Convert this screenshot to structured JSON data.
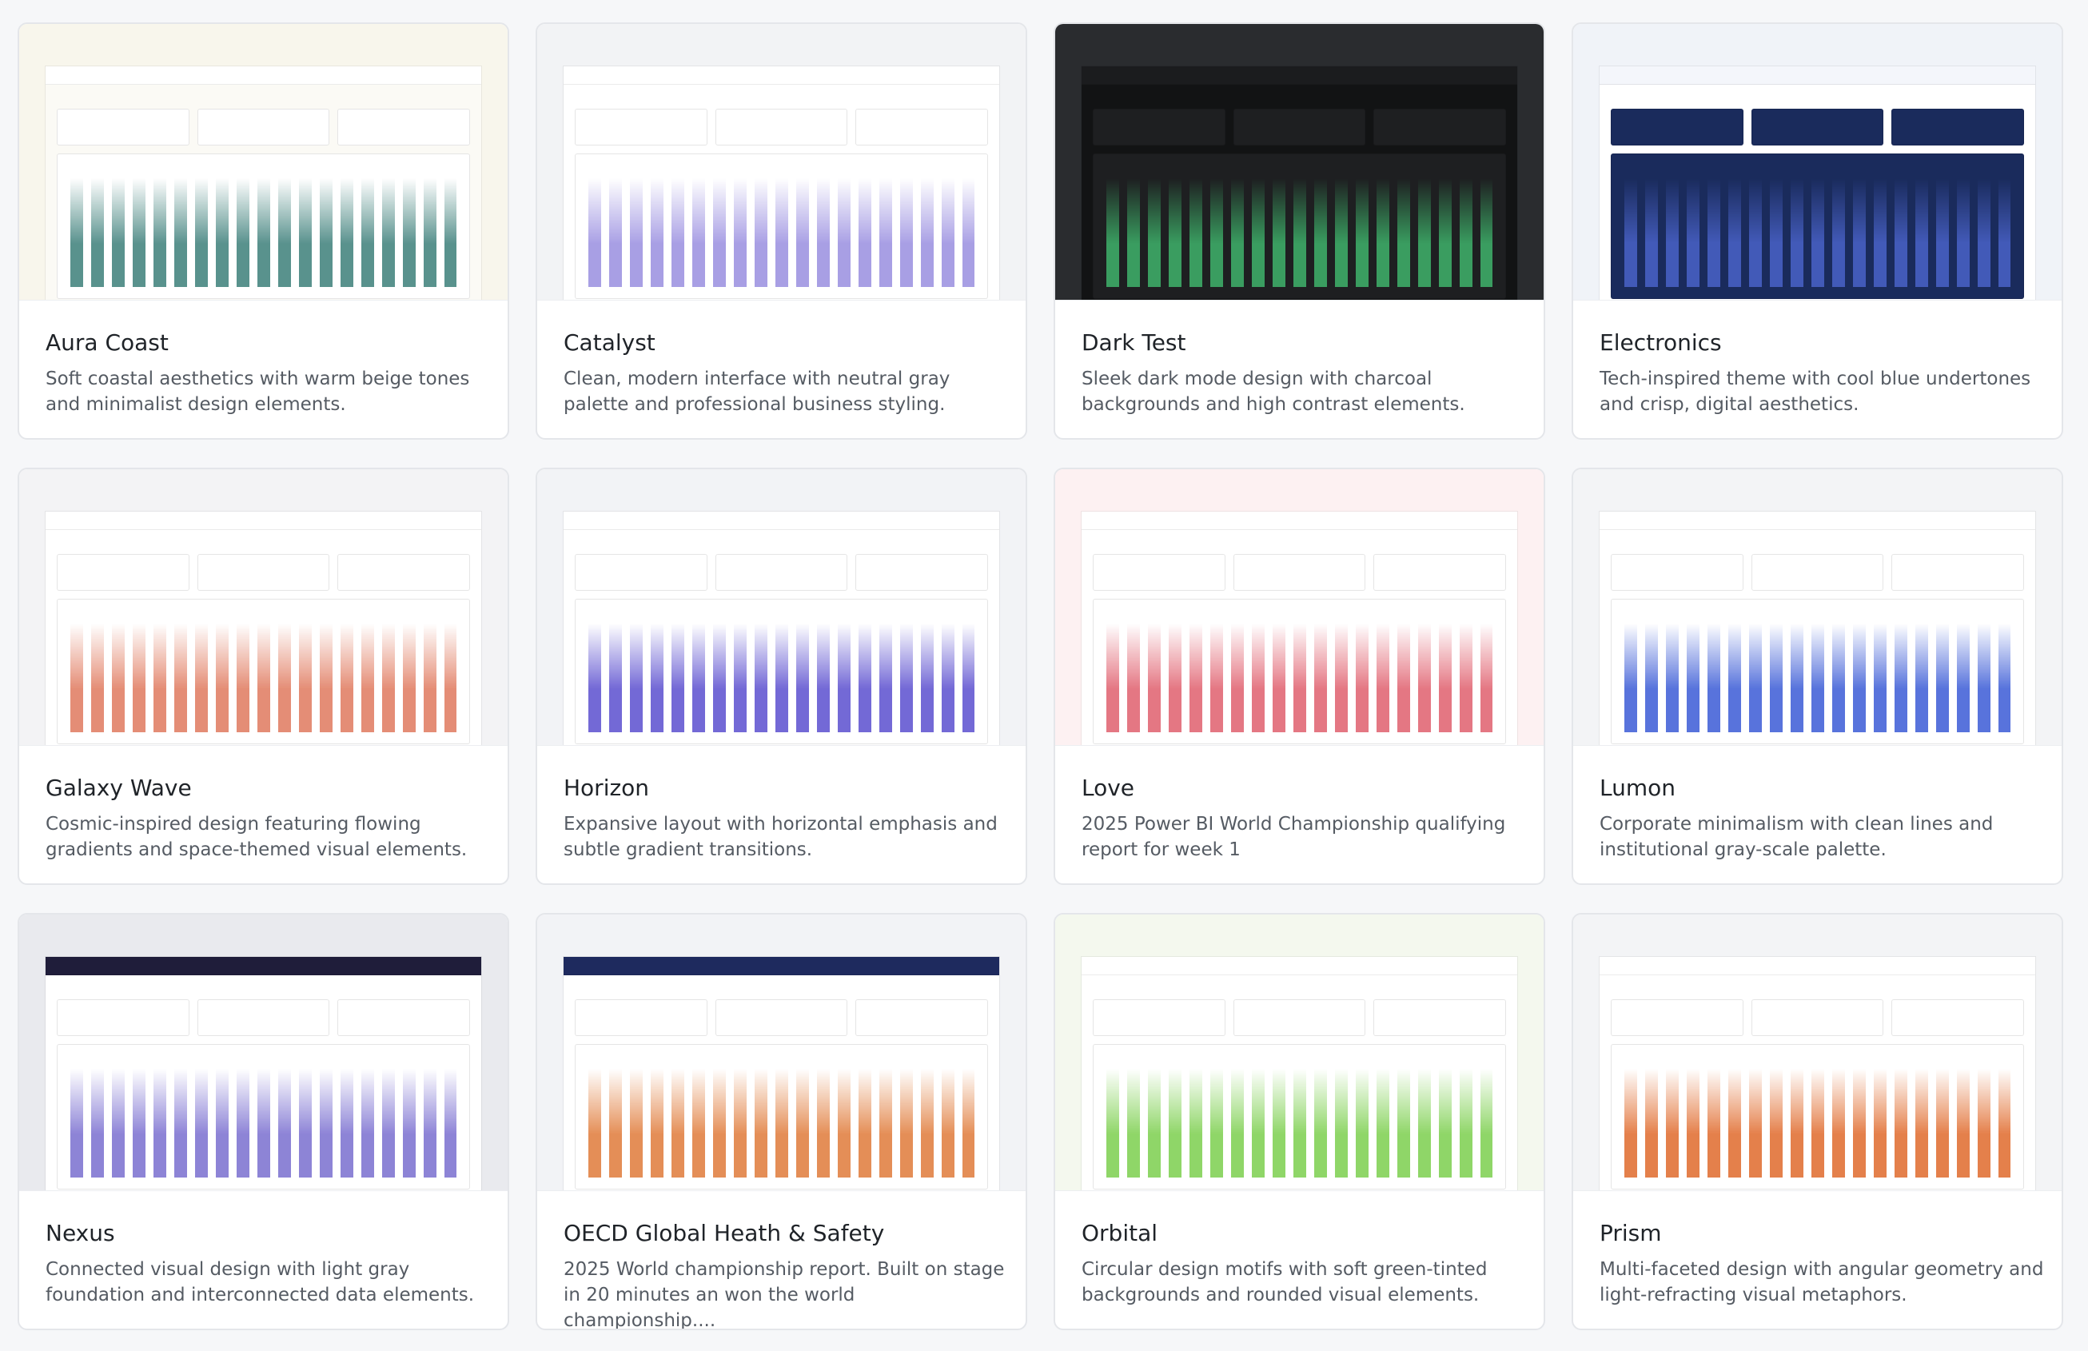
{
  "cards": [
    {
      "title": "Aura Coast",
      "description": "Soft coastal aesthetics with warm beige tones and minimalist design elements."
    },
    {
      "title": "Catalyst",
      "description": "Clean, modern interface with neutral gray palette and professional business styling."
    },
    {
      "title": "Dark Test",
      "description": "Sleek dark mode design with charcoal backgrounds and high contrast elements."
    },
    {
      "title": "Electronics",
      "description": "Tech-inspired theme with cool blue undertones and crisp, digital aesthetics."
    },
    {
      "title": "Galaxy Wave",
      "description": "Cosmic-inspired design featuring flowing gradients and space-themed visual elements."
    },
    {
      "title": "Horizon",
      "description": "Expansive layout with horizontal emphasis and subtle gradient transitions."
    },
    {
      "title": "Love",
      "description": "2025 Power BI World Championship qualifying report for week 1"
    },
    {
      "title": "Lumon",
      "description": "Corporate minimalism with clean lines and institutional gray-scale palette."
    },
    {
      "title": "Nexus",
      "description": "Connected visual design with light gray foundation and interconnected data elements."
    },
    {
      "title": "OECD Global Heath & Safety",
      "description": "2025 World championship report. Built on stage in 20 minutes an won the world championship...."
    },
    {
      "title": "Orbital",
      "description": "Circular design motifs with soft green-tinted backgrounds and rounded visual elements."
    },
    {
      "title": "Prism",
      "description": "Multi-faceted design with angular geometry and light-refracting visual metaphors."
    }
  ]
}
